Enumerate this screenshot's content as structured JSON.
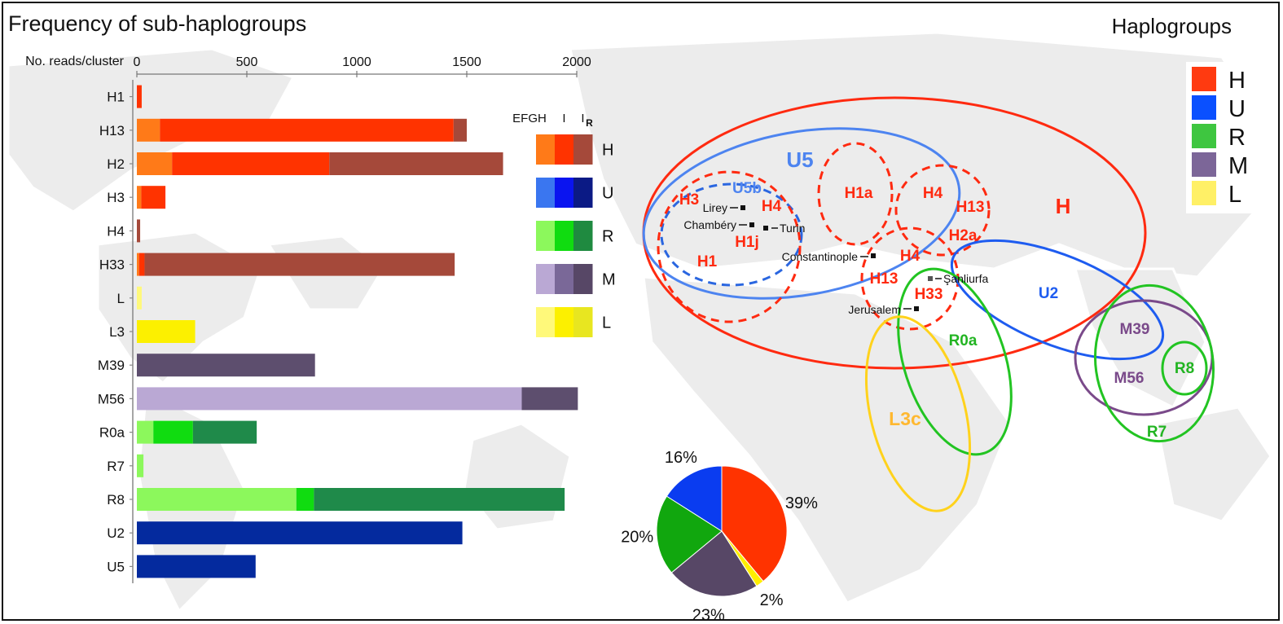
{
  "panel_title": "Frequency of sub-haplogroups",
  "legend_title": "Haplogroups",
  "chart_data": {
    "type": "bar",
    "orientation": "horizontal",
    "stacked": true,
    "title": "Frequency of sub-haplogroups",
    "xlabel": "No. reads/cluster",
    "xlim": [
      0,
      2000
    ],
    "xticks": [
      0,
      500,
      1000,
      1500,
      2000
    ],
    "categories": [
      "H1",
      "H13",
      "H2",
      "H3",
      "H4",
      "H33",
      "L",
      "L3",
      "M39",
      "M56",
      "R0a",
      "R7",
      "R8",
      "U2",
      "U5"
    ],
    "segment_labels": [
      "EFGH",
      "I",
      "IR"
    ],
    "bars": [
      {
        "label": "H1",
        "haplogroup": "H",
        "segments": [
          0,
          22,
          0
        ]
      },
      {
        "label": "H13",
        "haplogroup": "H",
        "segments": [
          105,
          1335,
          60
        ]
      },
      {
        "label": "H2",
        "haplogroup": "H",
        "segments": [
          160,
          715,
          790
        ]
      },
      {
        "label": "H3",
        "haplogroup": "H",
        "segments": [
          20,
          110,
          0
        ]
      },
      {
        "label": "H4",
        "haplogroup": "H",
        "segments": [
          0,
          0,
          15
        ]
      },
      {
        "label": "H33",
        "haplogroup": "H",
        "segments": [
          10,
          25,
          1410
        ]
      },
      {
        "label": "L",
        "haplogroup": "L",
        "segments": [
          22,
          0,
          0
        ]
      },
      {
        "label": "L3",
        "haplogroup": "L",
        "segments": [
          0,
          265,
          0
        ]
      },
      {
        "label": "M39",
        "haplogroup": "M",
        "segments": [
          0,
          0,
          810
        ]
      },
      {
        "label": "M56",
        "haplogroup": "M",
        "segments": [
          1750,
          0,
          255
        ]
      },
      {
        "label": "R0a",
        "haplogroup": "R",
        "segments": [
          75,
          180,
          290
        ]
      },
      {
        "label": "R7",
        "haplogroup": "R",
        "segments": [
          30,
          0,
          0
        ]
      },
      {
        "label": "R8",
        "haplogroup": "R",
        "segments": [
          725,
          80,
          1140
        ]
      },
      {
        "label": "U2",
        "haplogroup": "U",
        "segments": [
          0,
          0,
          1480
        ]
      },
      {
        "label": "U5",
        "haplogroup": "U",
        "segments": [
          0,
          0,
          540
        ]
      }
    ],
    "palette": {
      "H": [
        "#ff7a18",
        "#ff3300",
        "#a5493a"
      ],
      "U": [
        "#3a76f0",
        "#0a14f0",
        "#0b1a85"
      ],
      "R": [
        "#8cf85c",
        "#10dc10",
        "#1f8a40"
      ],
      "M": [
        "#baa8d4",
        "#7a6898",
        "#574766"
      ],
      "L": [
        "#fff97a",
        "#fcf000",
        "#e8e620"
      ]
    },
    "bar_palette": {
      "H": [
        "#ff7a18",
        "#ff3300",
        "#a5493a"
      ],
      "U": [
        "#3a76f0",
        "#0a14f0",
        "#042a9e"
      ],
      "R": [
        "#8cf85c",
        "#10dc10",
        "#1f8a4a"
      ],
      "M": [
        "#baa8d4",
        "#7a6898",
        "#5d4e6e"
      ],
      "L": [
        "#fff97a",
        "#fcf000",
        "#e8e620"
      ]
    },
    "key_rows": [
      "H",
      "U",
      "R",
      "M",
      "L"
    ],
    "key_headers": [
      "EFGH",
      "I",
      "I"
    ],
    "key_subscript": "R",
    "pie": {
      "slices": [
        {
          "haplogroup": "H",
          "value": 39,
          "label": "39%",
          "color": "#ff3300"
        },
        {
          "haplogroup": "L",
          "value": 2,
          "label": "2%",
          "color": "#ffee00"
        },
        {
          "haplogroup": "M",
          "value": 23,
          "label": "23%",
          "color": "#574766"
        },
        {
          "haplogroup": "R",
          "value": 20,
          "label": "20%",
          "color": "#11a70e"
        },
        {
          "haplogroup": "U",
          "value": 16,
          "label": "16%",
          "color": "#0a3cf0"
        }
      ]
    }
  },
  "legend": [
    {
      "label": "H",
      "color": "#ff3a10"
    },
    {
      "label": "U",
      "color": "#0a50ff"
    },
    {
      "label": "R",
      "color": "#3ec640"
    },
    {
      "label": "M",
      "color": "#7c6698"
    },
    {
      "label": "L",
      "color": "#fff066"
    }
  ],
  "map": {
    "region_labels": [
      {
        "text": "H",
        "color": "#ff2a10",
        "size": "big"
      },
      {
        "text": "U5",
        "color": "#4d84f0",
        "size": "big"
      },
      {
        "text": "U5b",
        "color": "#4d84f0",
        "size": "mid"
      },
      {
        "text": "H3",
        "color": "#ff2a10",
        "size": "mid"
      },
      {
        "text": "H4",
        "color": "#ff2a10",
        "size": "mid"
      },
      {
        "text": "H1j",
        "color": "#ff2a10",
        "size": "mid"
      },
      {
        "text": "H1",
        "color": "#ff2a10",
        "size": "mid"
      },
      {
        "text": "H1a",
        "color": "#ff2a10",
        "size": "mid"
      },
      {
        "text": "H4",
        "color": "#ff2a10",
        "size": "mid"
      },
      {
        "text": "H13",
        "color": "#ff2a10",
        "size": "mid"
      },
      {
        "text": "H2a",
        "color": "#ff2a10",
        "size": "mid"
      },
      {
        "text": "H4",
        "color": "#ff2a10",
        "size": "mid"
      },
      {
        "text": "H13",
        "color": "#ff2a10",
        "size": "mid"
      },
      {
        "text": "H33",
        "color": "#ff2a10",
        "size": "mid"
      },
      {
        "text": "U2",
        "color": "#1e5cf0",
        "size": "mid"
      },
      {
        "text": "R0a",
        "color": "#22b422",
        "size": "mid"
      },
      {
        "text": "L3c",
        "color": "#ffb830",
        "size": "big"
      },
      {
        "text": "M39",
        "color": "#7a4a8a",
        "size": "mid"
      },
      {
        "text": "M56",
        "color": "#7a4a8a",
        "size": "mid"
      },
      {
        "text": "R8",
        "color": "#22b422",
        "size": "mid"
      },
      {
        "text": "R7",
        "color": "#22b422",
        "size": "mid"
      }
    ],
    "places": [
      "Lirey",
      "Chambéry",
      "Turin",
      "Constantinople",
      "Şanliurfa",
      "Jerusalem"
    ]
  }
}
